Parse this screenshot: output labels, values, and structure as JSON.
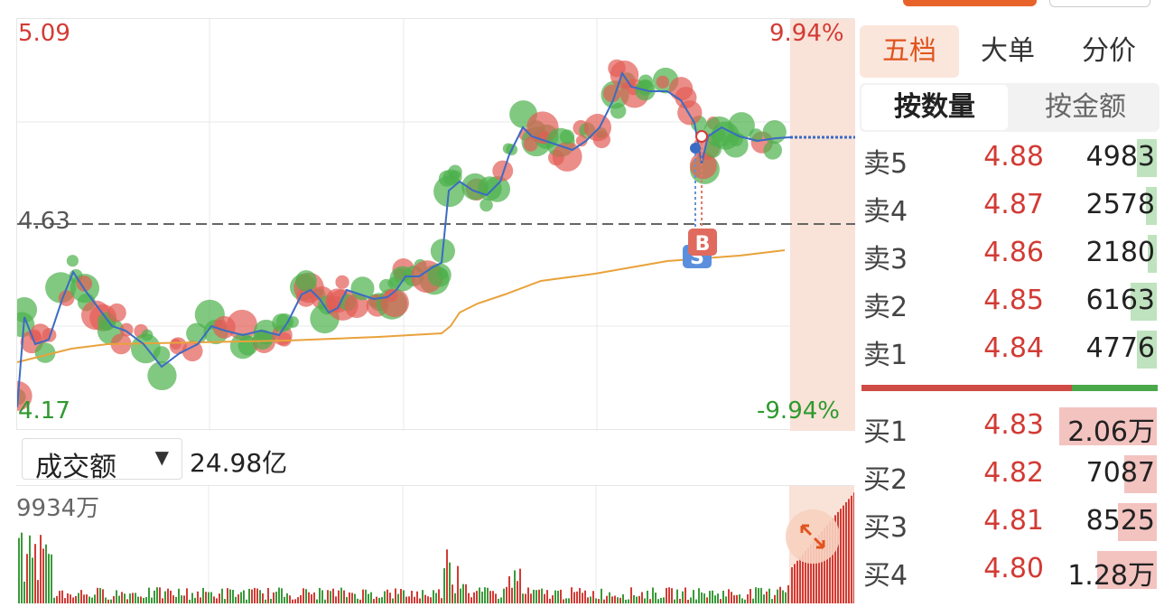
{
  "chart": {
    "price_high": "5.09",
    "price_low": "4.17",
    "price_ref": "4.63",
    "pct_high": "9.94%",
    "pct_low": "-9.94%",
    "marker_buy": "B",
    "marker_sell": "S"
  },
  "volume": {
    "metric_label": "成交额",
    "metric_value": "24.98亿",
    "max_label": "9934万"
  },
  "panel": {
    "tabs": [
      "五档",
      "大单",
      "分价"
    ],
    "toggle": [
      "按数量",
      "按金额"
    ],
    "sell": [
      {
        "name": "卖5",
        "price": "4.88",
        "vol": "4983",
        "fill": 0.18
      },
      {
        "name": "卖4",
        "price": "4.87",
        "vol": "2578",
        "fill": 0.1
      },
      {
        "name": "卖3",
        "price": "4.86",
        "vol": "2180",
        "fill": 0.08
      },
      {
        "name": "卖2",
        "price": "4.85",
        "vol": "6163",
        "fill": 0.24
      },
      {
        "name": "卖1",
        "price": "4.84",
        "vol": "4776",
        "fill": 0.18
      }
    ],
    "buy": [
      {
        "name": "买1",
        "price": "4.83",
        "vol": "2.06万",
        "fill": 0.9
      },
      {
        "name": "买2",
        "price": "4.82",
        "vol": "7087",
        "fill": 0.3
      },
      {
        "name": "买3",
        "price": "4.81",
        "vol": "8525",
        "fill": 0.36
      },
      {
        "name": "买4",
        "price": "4.80",
        "vol": "1.28万",
        "fill": 0.55
      }
    ],
    "balance_buy_fraction": 0.71
  },
  "colors": {
    "up": "#d23b35",
    "down": "#2e9a2e",
    "accent": "#e0541f",
    "avg": "#e9a23b",
    "line": "#3b6bc4"
  }
}
